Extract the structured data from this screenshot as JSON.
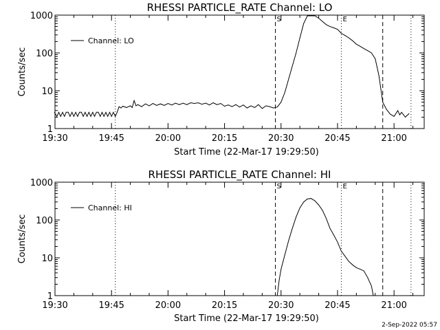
{
  "footer": {
    "timestamp": "2-Sep-2022 05:57"
  },
  "chart_data": [
    {
      "type": "line",
      "title": "RHESSI PARTICLE_RATE Channel: LO",
      "xlabel": "Start Time (22-Mar-17 19:29:50)",
      "ylabel": "Counts/sec",
      "y_scale": "log",
      "xlim": [
        "19:30",
        "21:08"
      ],
      "ylim": [
        1,
        1000
      ],
      "x_tick_labels": [
        "19:30",
        "19:45",
        "20:00",
        "20:15",
        "20:30",
        "20:45",
        "21:00"
      ],
      "y_tick_labels": [
        "1",
        "10",
        "100",
        "1000"
      ],
      "legend": "top-left",
      "series": [
        {
          "name": "Channel: LO",
          "x": [
            "19:29:50",
            "19:30:30",
            "19:31:00",
            "19:31:30",
            "19:32:00",
            "19:32:30",
            "19:33:00",
            "19:33:30",
            "19:34:00",
            "19:34:30",
            "19:35:00",
            "19:35:30",
            "19:36:00",
            "19:36:30",
            "19:37:00",
            "19:37:30",
            "19:38:00",
            "19:38:30",
            "19:39:00",
            "19:39:30",
            "19:40:00",
            "19:40:30",
            "19:41:00",
            "19:41:30",
            "19:42:00",
            "19:42:30",
            "19:43:00",
            "19:43:30",
            "19:44:00",
            "19:44:30",
            "19:45:00",
            "19:45:30",
            "19:46:00",
            "19:46:30",
            "19:47:00",
            "19:47:30",
            "19:48:00",
            "19:49:00",
            "19:50:00",
            "19:50:30",
            "19:51:00",
            "19:51:30",
            "19:52:00",
            "19:53:00",
            "19:54:00",
            "19:55:00",
            "19:56:00",
            "19:57:00",
            "19:58:00",
            "19:59:00",
            "20:00:00",
            "20:01:00",
            "20:02:00",
            "20:03:00",
            "20:04:00",
            "20:05:00",
            "20:06:00",
            "20:07:00",
            "20:08:00",
            "20:09:00",
            "20:10:00",
            "20:11:00",
            "20:12:00",
            "20:13:00",
            "20:14:00",
            "20:15:00",
            "20:16:00",
            "20:17:00",
            "20:18:00",
            "20:19:00",
            "20:20:00",
            "20:21:00",
            "20:22:00",
            "20:23:00",
            "20:24:00",
            "20:25:00",
            "20:26:00",
            "20:27:00",
            "20:28:00",
            "20:29:00",
            "20:30:00",
            "20:31:00",
            "20:32:00",
            "20:33:00",
            "20:34:00",
            "20:35:00",
            "20:36:00",
            "20:37:00",
            "20:38:00",
            "20:39:00",
            "20:40:00",
            "20:41:00",
            "20:42:00",
            "20:43:00",
            "20:44:00",
            "20:45:00",
            "20:46:00",
            "20:47:00",
            "20:48:00",
            "20:49:00",
            "20:50:00",
            "20:51:00",
            "20:52:00",
            "20:53:00",
            "20:54:00",
            "20:55:00",
            "20:56:00",
            "20:57:00",
            "20:58:00",
            "20:59:00",
            "21:00:00",
            "21:01:00",
            "21:01:30",
            "21:02:00",
            "21:03:00",
            "21:04:00"
          ],
          "y": [
            2.7,
            2.1,
            2.7,
            2.1,
            2.7,
            2.1,
            2.7,
            2.7,
            2.1,
            2.7,
            2.1,
            2.7,
            2.1,
            2.7,
            2.7,
            2.1,
            2.7,
            2.1,
            2.7,
            2.1,
            2.7,
            2.1,
            2.7,
            2.7,
            2.1,
            2.7,
            2.1,
            2.7,
            2.1,
            2.7,
            2.1,
            2.7,
            2.1,
            2.7,
            3.8,
            3.5,
            3.9,
            3.6,
            4.0,
            3.6,
            5.5,
            4.0,
            4.3,
            3.8,
            4.5,
            4.0,
            4.6,
            4.1,
            4.5,
            4.1,
            4.6,
            4.2,
            4.7,
            4.3,
            4.7,
            4.3,
            4.8,
            4.6,
            4.8,
            4.4,
            4.7,
            4.2,
            4.8,
            4.3,
            4.6,
            3.9,
            4.2,
            3.8,
            4.3,
            3.7,
            4.2,
            3.5,
            4.0,
            3.6,
            4.3,
            3.4,
            4.0,
            3.8,
            3.5,
            3.7,
            5.0,
            9,
            20,
            45,
            100,
            250,
            600,
            1000,
            1150,
            1000,
            830,
            680,
            560,
            500,
            460,
            420,
            330,
            290,
            250,
            210,
            170,
            150,
            130,
            115,
            100,
            70,
            25,
            5,
            3.2,
            2.4,
            2.1,
            3.0,
            2.3,
            2.7,
            2.0,
            2.5
          ]
        }
      ],
      "vlines": [
        {
          "time": "19:46:00",
          "style": "dotted"
        },
        {
          "time": "20:28:30",
          "style": "dashed"
        },
        {
          "time": "20:46:00",
          "style": "dotted"
        },
        {
          "time": "20:57:00",
          "style": "dashed"
        },
        {
          "time": "21:04:30",
          "style": "dotted"
        }
      ],
      "annotations": [
        {
          "text": "S",
          "time": "20:28:30"
        },
        {
          "text": "E",
          "time": "20:46:00"
        }
      ]
    },
    {
      "type": "line",
      "title": "RHESSI PARTICLE_RATE Channel: HI",
      "xlabel": "Start Time (22-Mar-17 19:29:50)",
      "ylabel": "Counts/sec",
      "y_scale": "log",
      "xlim": [
        "19:30",
        "21:08"
      ],
      "ylim": [
        1,
        1000
      ],
      "x_tick_labels": [
        "19:30",
        "19:45",
        "20:00",
        "20:15",
        "20:30",
        "20:45",
        "21:00"
      ],
      "y_tick_labels": [
        "1",
        "10",
        "100",
        "1000"
      ],
      "legend": "top-left",
      "series": [
        {
          "name": "Channel: HI",
          "x": [
            "20:29:00",
            "20:29:30",
            "20:30:00",
            "20:31:00",
            "20:32:00",
            "20:33:00",
            "20:34:00",
            "20:35:00",
            "20:36:00",
            "20:37:00",
            "20:38:00",
            "20:39:00",
            "20:40:00",
            "20:41:00",
            "20:42:00",
            "20:43:00",
            "20:44:00",
            "20:45:00",
            "20:46:00",
            "20:47:00",
            "20:48:00",
            "20:49:00",
            "20:50:00",
            "20:51:00",
            "20:52:00",
            "20:53:00",
            "20:54:00",
            "20:54:30"
          ],
          "y": [
            1.0,
            2.5,
            5,
            12,
            28,
            60,
            120,
            210,
            300,
            360,
            370,
            320,
            250,
            180,
            110,
            60,
            40,
            26,
            15,
            11,
            8,
            6.5,
            5.5,
            5.0,
            4.5,
            3.0,
            1.8,
            1.0
          ]
        }
      ],
      "vlines": [
        {
          "time": "19:46:00",
          "style": "dotted"
        },
        {
          "time": "20:28:30",
          "style": "dashed"
        },
        {
          "time": "20:46:00",
          "style": "dotted"
        },
        {
          "time": "20:57:00",
          "style": "dashed"
        },
        {
          "time": "21:04:30",
          "style": "dotted"
        }
      ],
      "annotations": [
        {
          "text": "S",
          "time": "20:28:30"
        },
        {
          "text": "E",
          "time": "20:46:00"
        }
      ]
    }
  ]
}
